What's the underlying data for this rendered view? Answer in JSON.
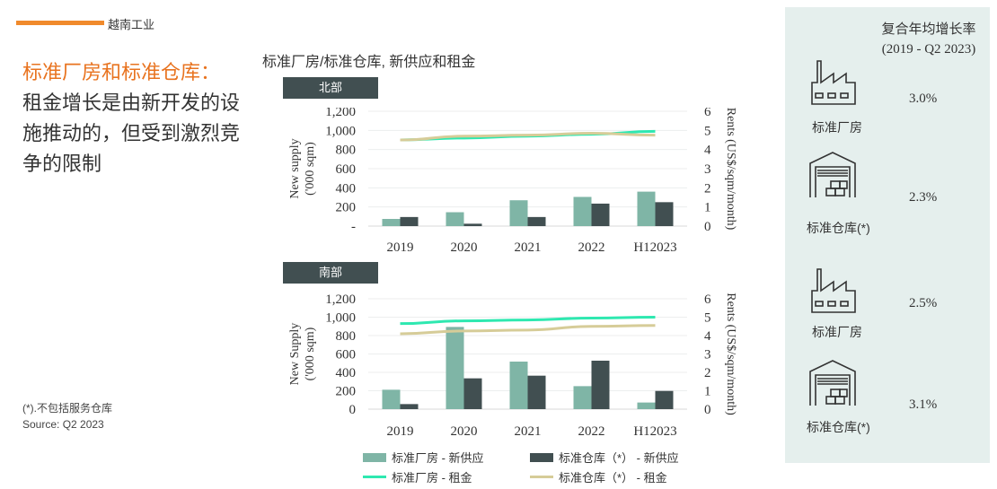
{
  "section_label": "越南工业",
  "headline": {
    "highlight": "标准厂房和标准仓库：",
    "body": "租金增长是由新开发的设施推动的，但受到激烈竞争的限制"
  },
  "notes": {
    "footnote": "(*).不包括服务仓库",
    "source": "Source: Q2 2023"
  },
  "chart_title": "标准厂房/标准仓库, 新供应和租金",
  "colors": {
    "factory_supply": "#7fb5a6",
    "warehouse_supply": "#414f51",
    "factory_rent": "#2ee8b0",
    "warehouse_rent": "#d6cc98",
    "panel_bg": "#e5efed"
  },
  "chart_data": [
    {
      "type": "bar",
      "title": "北部",
      "categories": [
        "2019",
        "2020",
        "2021",
        "2022",
        "H12023"
      ],
      "ylabel": "New supply ('000 sqm)",
      "y2label": "Rents (US$/sqm/month)",
      "ylim": [
        0,
        1200
      ],
      "yticks": [
        "-",
        "200",
        "400",
        "600",
        "800",
        "1,000",
        "1,200"
      ],
      "y2lim": [
        0,
        6
      ],
      "y2ticks": [
        "0",
        "1",
        "2",
        "3",
        "4",
        "5",
        "6"
      ],
      "series": [
        {
          "name": "标准厂房 - 新供应",
          "kind": "bar",
          "axis": "left",
          "values": [
            75,
            145,
            270,
            305,
            360
          ]
        },
        {
          "name": "标准仓库（*） - 新供应",
          "kind": "bar",
          "axis": "left",
          "values": [
            95,
            25,
            95,
            235,
            250
          ]
        },
        {
          "name": "标准厂房 - 租金",
          "kind": "line",
          "axis": "right",
          "values": [
            4.5,
            4.6,
            4.7,
            4.8,
            4.95
          ]
        },
        {
          "name": "标准仓库（*） - 租金",
          "kind": "line",
          "axis": "right",
          "values": [
            4.5,
            4.7,
            4.75,
            4.85,
            4.75
          ]
        }
      ]
    },
    {
      "type": "bar",
      "title": "南部",
      "categories": [
        "2019",
        "2020",
        "2021",
        "2022",
        "H12023"
      ],
      "ylabel": "New Supply ('000 sqm)",
      "y2label": "Rents (US$/sqm/month)",
      "ylim": [
        0,
        1200
      ],
      "yticks": [
        "0",
        "200",
        "400",
        "600",
        "800",
        "1,000",
        "1,200"
      ],
      "y2lim": [
        0,
        6
      ],
      "y2ticks": [
        "0",
        "1",
        "2",
        "3",
        "4",
        "5",
        "6"
      ],
      "series": [
        {
          "name": "标准厂房 - 新供应",
          "kind": "bar",
          "axis": "left",
          "values": [
            211,
            894,
            517,
            250,
            72
          ]
        },
        {
          "name": "标准仓库（*） - 新供应",
          "kind": "bar",
          "axis": "left",
          "values": [
            55,
            335,
            364,
            527,
            198
          ]
        },
        {
          "name": "标准厂房 - 租金",
          "kind": "line",
          "axis": "right",
          "values": [
            4.65,
            4.8,
            4.85,
            4.95,
            5.0
          ]
        },
        {
          "name": "标准仓库（*） - 租金",
          "kind": "line",
          "axis": "right",
          "values": [
            4.1,
            4.25,
            4.3,
            4.5,
            4.55
          ]
        }
      ]
    }
  ],
  "legend": [
    "标准厂房 - 新供应",
    "标准仓库（*） - 新供应",
    "标准厂房 - 租金",
    "标准仓库（*） - 租金"
  ],
  "panel": {
    "title": "复合年均增长率",
    "period": "(2019 - Q2 2023)",
    "items": [
      {
        "icon": "factory-icon",
        "label": "标准厂房",
        "value": "3.0%"
      },
      {
        "icon": "warehouse-icon",
        "label": "标准仓库(*)",
        "value": "2.3%"
      },
      {
        "icon": "factory-icon",
        "label": "标准厂房",
        "value": "2.5%"
      },
      {
        "icon": "warehouse-icon",
        "label": "标准仓库(*)",
        "value": "3.1%"
      }
    ]
  }
}
